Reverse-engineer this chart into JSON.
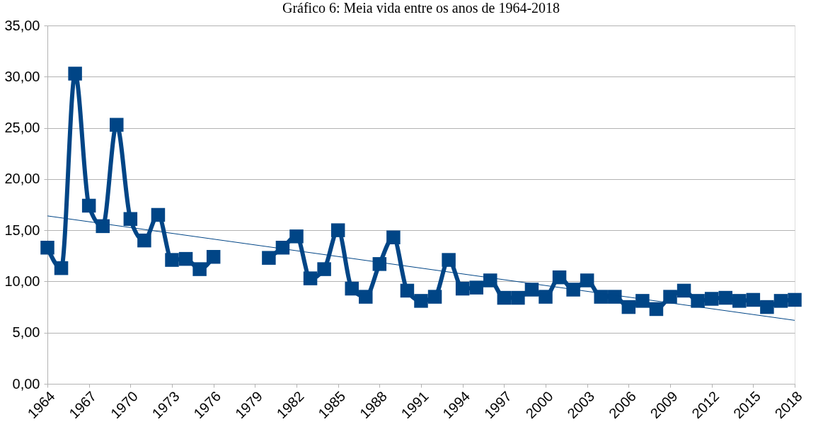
{
  "chart_data": {
    "type": "line",
    "title": "Gráfico 6: Meia vida entre os anos de 1964-2018",
    "x": [
      1964,
      1965,
      1966,
      1967,
      1968,
      1969,
      1970,
      1971,
      1972,
      1973,
      1974,
      1975,
      1976,
      1977,
      1978,
      1979,
      1980,
      1981,
      1982,
      1983,
      1984,
      1985,
      1986,
      1987,
      1988,
      1989,
      1990,
      1991,
      1992,
      1993,
      1994,
      1995,
      1996,
      1997,
      1998,
      1999,
      2000,
      2001,
      2002,
      2003,
      2004,
      2005,
      2006,
      2007,
      2008,
      2009,
      2010,
      2011,
      2012,
      2013,
      2014,
      2015,
      2016,
      2017,
      2018
    ],
    "series": [
      {
        "color": "#004586",
        "marker": "square",
        "values": [
          13.3,
          11.3,
          30.3,
          17.4,
          15.4,
          25.3,
          16.1,
          14.0,
          16.5,
          12.1,
          12.2,
          11.2,
          12.4,
          null,
          null,
          null,
          12.3,
          13.3,
          14.4,
          10.3,
          11.2,
          15.0,
          9.3,
          8.5,
          11.7,
          14.3,
          9.1,
          8.1,
          8.5,
          12.1,
          9.3,
          9.4,
          10.1,
          8.4,
          8.4,
          9.2,
          8.5,
          10.4,
          9.2,
          10.1,
          8.5,
          8.5,
          7.5,
          8.1,
          7.3,
          8.5,
          9.1,
          8.1,
          8.3,
          8.4,
          8.1,
          8.2,
          7.5,
          8.1,
          8.2
        ]
      },
      {
        "color": "#004586",
        "marker": "none",
        "x": [
          1964,
          2018
        ],
        "values": [
          16.4,
          6.2
        ]
      }
    ],
    "xlim": [
      1964,
      2018
    ],
    "xticks": [
      1964,
      1967,
      1970,
      1973,
      1976,
      1979,
      1982,
      1985,
      1988,
      1991,
      1994,
      1997,
      2000,
      2003,
      2006,
      2009,
      2012,
      2015,
      2018
    ],
    "ylim": [
      0,
      35
    ],
    "yticks": [
      {
        "value": 0,
        "label": "0,00"
      },
      {
        "value": 5,
        "label": "5,00"
      },
      {
        "value": 10,
        "label": "10,00"
      },
      {
        "value": 15,
        "label": "15,00"
      },
      {
        "value": 20,
        "label": "20,00"
      },
      {
        "value": 25,
        "label": "25,00"
      },
      {
        "value": 30,
        "label": "30,00"
      },
      {
        "value": 35,
        "label": "35,00"
      }
    ],
    "grid": "y"
  }
}
